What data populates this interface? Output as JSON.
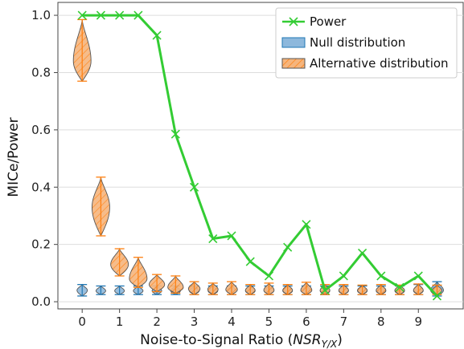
{
  "chart_data": {
    "type": "line",
    "xlabel": "Noise-to-Signal Ratio (",
    "xlabel_math": "NSR",
    "xlabel_sub": "Y/X",
    "xlabel_close": ")",
    "ylabel": "MICe/Power",
    "xlim": [
      -0.65,
      10.2
    ],
    "ylim": [
      -0.025,
      1.045
    ],
    "x_ticks": [
      0,
      1,
      2,
      3,
      4,
      5,
      6,
      7,
      8,
      9
    ],
    "y_ticks": [
      0.0,
      0.2,
      0.4,
      0.6,
      0.8,
      1.0
    ],
    "y_tick_labels": [
      "0.0",
      "0.2",
      "0.4",
      "0.6",
      "0.8",
      "1.0"
    ],
    "grid": "y",
    "legend_position": "top-right",
    "colors": {
      "power": "#33cc33",
      "null": "#1f77b4",
      "null_fill": "#8db8dc",
      "alt": "#ff7f0e",
      "alt_fill": "#f5b57d"
    },
    "legend": [
      {
        "key": "power",
        "label": "Power"
      },
      {
        "key": "null",
        "label": "Null distribution"
      },
      {
        "key": "alt",
        "label": "Alternative distribution"
      }
    ],
    "series": [
      {
        "name": "Power",
        "x": [
          0,
          0.5,
          1,
          1.5,
          2,
          2.5,
          3,
          3.5,
          4,
          4.5,
          5,
          5.5,
          6,
          6.5,
          7,
          7.5,
          8,
          8.5,
          9,
          9.5
        ],
        "values": [
          1.0,
          1.0,
          1.0,
          1.0,
          0.93,
          0.585,
          0.4,
          0.22,
          0.23,
          0.14,
          0.09,
          0.19,
          0.27,
          0.04,
          0.09,
          0.17,
          0.09,
          0.05,
          0.09,
          0.02
        ]
      }
    ],
    "null_distribution": [
      {
        "x": 0,
        "min": 0.02,
        "max": 0.06,
        "center": 0.04
      },
      {
        "x": 0.5,
        "min": 0.025,
        "max": 0.055,
        "center": 0.038
      },
      {
        "x": 1,
        "min": 0.025,
        "max": 0.055,
        "center": 0.038
      },
      {
        "x": 1.5,
        "min": 0.025,
        "max": 0.055,
        "center": 0.038
      },
      {
        "x": 2,
        "min": 0.025,
        "max": 0.055,
        "center": 0.038
      },
      {
        "x": 2.5,
        "min": 0.025,
        "max": 0.055,
        "center": 0.038
      },
      {
        "x": 3,
        "min": 0.025,
        "max": 0.055,
        "center": 0.038
      },
      {
        "x": 3.5,
        "min": 0.025,
        "max": 0.055,
        "center": 0.038
      },
      {
        "x": 4,
        "min": 0.025,
        "max": 0.055,
        "center": 0.038
      },
      {
        "x": 4.5,
        "min": 0.025,
        "max": 0.055,
        "center": 0.038
      },
      {
        "x": 5,
        "min": 0.025,
        "max": 0.055,
        "center": 0.038
      },
      {
        "x": 5.5,
        "min": 0.025,
        "max": 0.055,
        "center": 0.038
      },
      {
        "x": 6,
        "min": 0.025,
        "max": 0.055,
        "center": 0.038
      },
      {
        "x": 6.5,
        "min": 0.025,
        "max": 0.055,
        "center": 0.038
      },
      {
        "x": 7,
        "min": 0.025,
        "max": 0.055,
        "center": 0.038
      },
      {
        "x": 7.5,
        "min": 0.025,
        "max": 0.055,
        "center": 0.038
      },
      {
        "x": 8,
        "min": 0.025,
        "max": 0.055,
        "center": 0.038
      },
      {
        "x": 8.5,
        "min": 0.025,
        "max": 0.055,
        "center": 0.038
      },
      {
        "x": 9,
        "min": 0.025,
        "max": 0.06,
        "center": 0.038
      },
      {
        "x": 9.5,
        "min": 0.02,
        "max": 0.07,
        "center": 0.04
      }
    ],
    "alternative_distribution": [
      {
        "x": 0,
        "min": 0.77,
        "max": 0.985,
        "center": 0.84
      },
      {
        "x": 0.5,
        "min": 0.23,
        "max": 0.435,
        "center": 0.33
      },
      {
        "x": 1,
        "min": 0.09,
        "max": 0.185,
        "center": 0.13
      },
      {
        "x": 1.5,
        "min": 0.05,
        "max": 0.155,
        "center": 0.08
      },
      {
        "x": 2,
        "min": 0.035,
        "max": 0.095,
        "center": 0.06
      },
      {
        "x": 2.5,
        "min": 0.03,
        "max": 0.09,
        "center": 0.05
      },
      {
        "x": 3,
        "min": 0.025,
        "max": 0.07,
        "center": 0.045
      },
      {
        "x": 3.5,
        "min": 0.025,
        "max": 0.065,
        "center": 0.043
      },
      {
        "x": 4,
        "min": 0.025,
        "max": 0.07,
        "center": 0.042
      },
      {
        "x": 4.5,
        "min": 0.025,
        "max": 0.06,
        "center": 0.04
      },
      {
        "x": 5,
        "min": 0.025,
        "max": 0.065,
        "center": 0.04
      },
      {
        "x": 5.5,
        "min": 0.025,
        "max": 0.06,
        "center": 0.04
      },
      {
        "x": 6,
        "min": 0.025,
        "max": 0.068,
        "center": 0.04
      },
      {
        "x": 6.5,
        "min": 0.025,
        "max": 0.06,
        "center": 0.04
      },
      {
        "x": 7,
        "min": 0.025,
        "max": 0.06,
        "center": 0.04
      },
      {
        "x": 7.5,
        "min": 0.025,
        "max": 0.058,
        "center": 0.04
      },
      {
        "x": 8,
        "min": 0.025,
        "max": 0.06,
        "center": 0.04
      },
      {
        "x": 8.5,
        "min": 0.025,
        "max": 0.058,
        "center": 0.04
      },
      {
        "x": 9,
        "min": 0.025,
        "max": 0.062,
        "center": 0.04
      },
      {
        "x": 9.5,
        "min": 0.025,
        "max": 0.058,
        "center": 0.04
      }
    ]
  }
}
